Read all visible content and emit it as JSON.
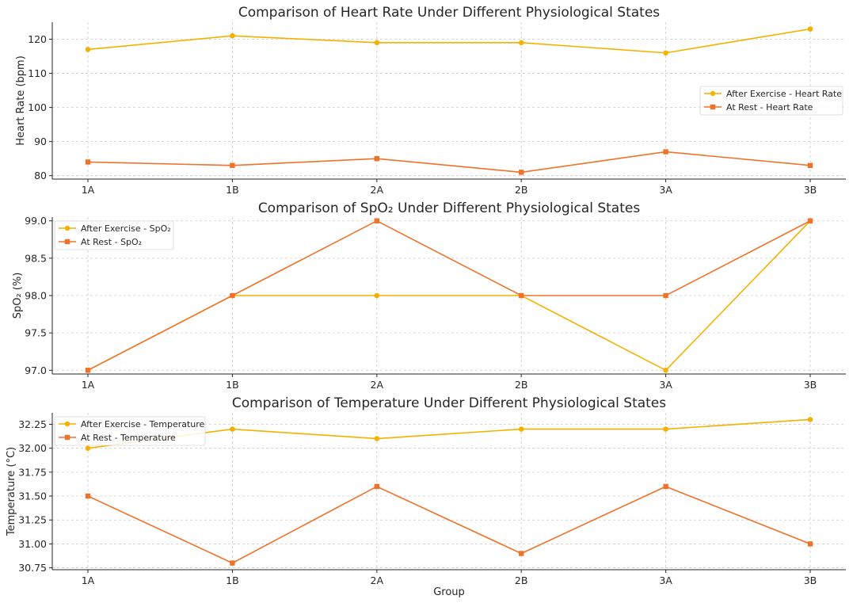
{
  "colors": {
    "after_exercise": "#f5b100",
    "at_rest": "#f07128"
  },
  "chart_data": [
    {
      "type": "line",
      "title": "Comparison of Heart Rate Under Different Physiological States",
      "xlabel": "",
      "ylabel": "Heart Rate (bpm)",
      "categories": [
        "1A",
        "1B",
        "2A",
        "2B",
        "3A",
        "3B"
      ],
      "ylim": [
        79,
        125
      ],
      "yticks": [
        80,
        90,
        100,
        110,
        120
      ],
      "ytick_labels": [
        "80",
        "90",
        "100",
        "110",
        "120"
      ],
      "legend_position": "center-right",
      "grid": true,
      "series": [
        {
          "name": "After Exercise - Heart Rate",
          "marker": "circle",
          "color": "#f5b100",
          "values": [
            117,
            121,
            119,
            119,
            116,
            123
          ]
        },
        {
          "name": "At Rest - Heart Rate",
          "marker": "square",
          "color": "#f07128",
          "values": [
            84,
            83,
            85,
            81,
            87,
            83
          ]
        }
      ]
    },
    {
      "type": "line",
      "title": "Comparison of SpO₂ Under Different Physiological States",
      "xlabel": "",
      "ylabel": "SpO₂ (%)",
      "categories": [
        "1A",
        "1B",
        "2A",
        "2B",
        "3A",
        "3B"
      ],
      "ylim": [
        96.95,
        99.05
      ],
      "yticks": [
        97.0,
        97.5,
        98.0,
        98.5,
        99.0
      ],
      "ytick_labels": [
        "97.0",
        "97.5",
        "98.0",
        "98.5",
        "99.0"
      ],
      "legend_position": "upper-left",
      "grid": true,
      "series": [
        {
          "name": "After Exercise - SpO₂",
          "marker": "circle",
          "color": "#f5b100",
          "values": [
            97,
            98,
            98,
            98,
            97,
            99
          ]
        },
        {
          "name": "At Rest - SpO₂",
          "marker": "square",
          "color": "#f07128",
          "values": [
            97,
            98,
            99,
            98,
            98,
            99
          ]
        }
      ]
    },
    {
      "type": "line",
      "title": "Comparison of Temperature Under Different Physiological States",
      "xlabel": "Group",
      "ylabel": "Temperature (°C)",
      "categories": [
        "1A",
        "1B",
        "2A",
        "2B",
        "3A",
        "3B"
      ],
      "ylim": [
        30.73,
        32.37
      ],
      "yticks": [
        30.75,
        31.0,
        31.25,
        31.5,
        31.75,
        32.0,
        32.25
      ],
      "ytick_labels": [
        "30.75",
        "31.00",
        "31.25",
        "31.50",
        "31.75",
        "32.00",
        "32.25"
      ],
      "legend_position": "upper-left",
      "grid": true,
      "series": [
        {
          "name": "After Exercise - Temperature",
          "marker": "circle",
          "color": "#f5b100",
          "values": [
            32.0,
            32.2,
            32.1,
            32.2,
            32.2,
            32.3
          ]
        },
        {
          "name": "At Rest - Temperature",
          "marker": "square",
          "color": "#f07128",
          "values": [
            31.5,
            30.8,
            31.6,
            30.9,
            31.6,
            31.0
          ]
        }
      ]
    }
  ]
}
